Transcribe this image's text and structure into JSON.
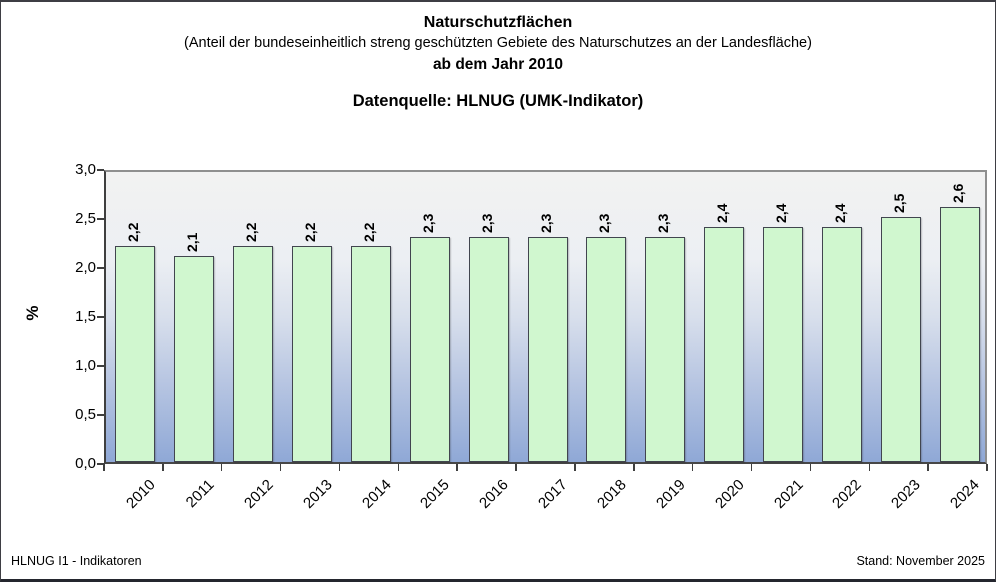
{
  "header": {
    "title": "Naturschutzflächen",
    "subtitle": "(Anteil der bundeseinheitlich streng geschützten Gebiete des Naturschutzes an der Landesfläche)",
    "subtitle2": "ab dem Jahr 2010",
    "source": "Datenquelle: HLNUG (UMK-Indikator)"
  },
  "chart_data": {
    "type": "bar",
    "title": "Naturschutzflächen (Anteil der bundeseinheitlich streng geschützten Gebiete des Naturschutzes an der Landesfläche) ab dem Jahr 2010",
    "categories": [
      "2010",
      "2011",
      "2012",
      "2013",
      "2014",
      "2015",
      "2016",
      "2017",
      "2018",
      "2019",
      "2020",
      "2021",
      "2022",
      "2023",
      "2024"
    ],
    "values": [
      2.2,
      2.1,
      2.2,
      2.2,
      2.2,
      2.3,
      2.3,
      2.3,
      2.3,
      2.3,
      2.4,
      2.4,
      2.4,
      2.5,
      2.6
    ],
    "bar_labels": [
      "2,2",
      "2,1",
      "2,2",
      "2,2",
      "2,2",
      "2,3",
      "2,3",
      "2,3",
      "2,3",
      "2,3",
      "2,4",
      "2,4",
      "2,4",
      "2,5",
      "2,6"
    ],
    "xlabel": "",
    "ylabel": "%",
    "ylim": [
      0,
      3
    ],
    "ytick_step": 0.5,
    "ytick_labels": [
      "0,0",
      "0,5",
      "1,0",
      "1,5",
      "2,0",
      "2,5",
      "3,0"
    ],
    "grid": false,
    "legend": "none",
    "bar_color": "#d0f7cf",
    "bar_border_color": "#41454f",
    "plot_bg_top": "#f2f2f2",
    "plot_bg_bottom": "#8fa8d6"
  },
  "footer": {
    "left": "HLNUG I1 - Indikatoren",
    "right": "Stand: November 2025"
  }
}
